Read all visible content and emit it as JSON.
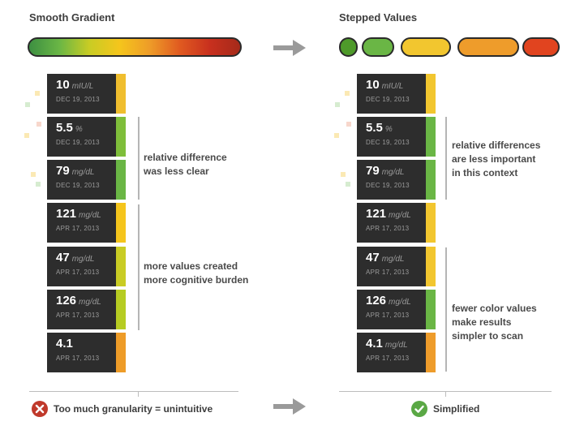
{
  "left": {
    "heading": "Smooth Gradient",
    "cards": [
      {
        "value": "10",
        "unit": "mIU/L",
        "date": "DEC 19, 2013"
      },
      {
        "value": "5.5",
        "unit": "%",
        "date": "DEC 19, 2013"
      },
      {
        "value": "79",
        "unit": "mg/dL",
        "date": "DEC 19, 2013"
      },
      {
        "value": "121",
        "unit": "mg/dL",
        "date": "APR 17, 2013"
      },
      {
        "value": "47",
        "unit": "mg/dL",
        "date": "APR 17, 2013"
      },
      {
        "value": "126",
        "unit": "mg/dL",
        "date": "APR 17, 2013"
      },
      {
        "value": "4.1",
        "unit": "",
        "date": "APR 17, 2013"
      }
    ],
    "strip_colors": [
      "#f0be2e",
      "#7fbe3a",
      "#6ab645",
      "#f5c51c",
      "#c9cc24",
      "#b6cc22",
      "#ee9c28"
    ],
    "note1": [
      "relative difference",
      "was less clear"
    ],
    "note2": [
      "more values created",
      "more cognitive burden"
    ],
    "footer": "Too much granularity = unintuitive",
    "footer_icon": "x-circle-icon"
  },
  "right": {
    "heading": "Stepped Values",
    "pill_colors": [
      "#4e9a2a",
      "#6ab645",
      "#f2c62f",
      "#ee9c2b",
      "#e1441f"
    ],
    "cards": [
      {
        "value": "10",
        "unit": "mIU/L",
        "date": "DEC 19, 2013"
      },
      {
        "value": "5.5",
        "unit": "%",
        "date": "DEC 19, 2013"
      },
      {
        "value": "79",
        "unit": "mg/dL",
        "date": "DEC 19, 2013"
      },
      {
        "value": "121",
        "unit": "mg/dL",
        "date": "APR 17, 2013"
      },
      {
        "value": "47",
        "unit": "mg/dL",
        "date": "APR 17, 2013"
      },
      {
        "value": "126",
        "unit": "mg/dL",
        "date": "APR 17, 2013"
      },
      {
        "value": "4.1",
        "unit": "mg/dL",
        "date": "APR 17, 2013"
      }
    ],
    "strip_colors": [
      "#f2c62f",
      "#6ab645",
      "#6ab645",
      "#f2c62f",
      "#f2c62f",
      "#6ab645",
      "#ee9c2b"
    ],
    "note1": [
      "relative differences",
      "are less important",
      "in this context"
    ],
    "note2": [
      "fewer color values",
      "make results",
      "simpler to scan"
    ],
    "footer": "Simplified",
    "footer_icon": "check-circle-icon"
  },
  "colors": {
    "gradient": [
      "#3d8f42",
      "#6ab645",
      "#c9cc24",
      "#f5c51c",
      "#ee9c28",
      "#e05a20",
      "#c8301e",
      "#a52a1a"
    ],
    "error": "#c0392b",
    "success": "#5aa845",
    "arrow": "#9a9a9a"
  }
}
